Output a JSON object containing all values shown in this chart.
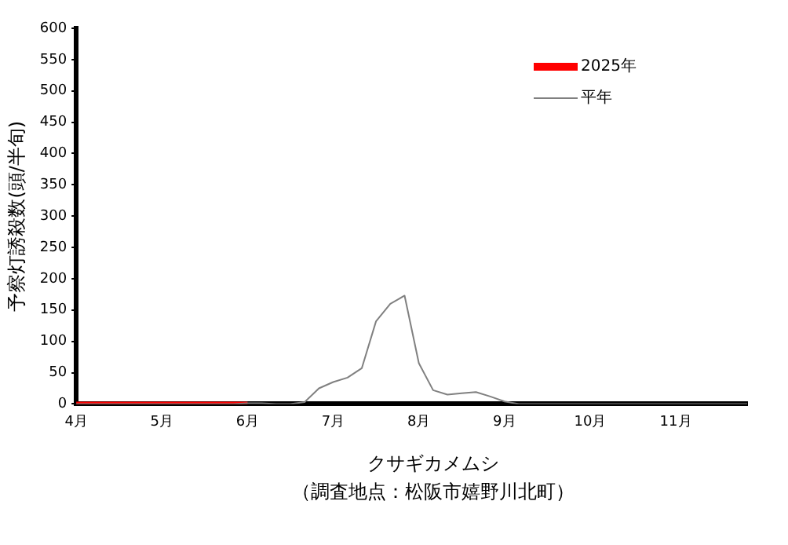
{
  "chart_data": {
    "type": "line",
    "xlabel": "クサギカメムシ",
    "ylabel": "予察灯誘殺数(頭/半旬)",
    "annotations": [
      "（調査地点：松阪市嬉野川北町）"
    ],
    "categories": [
      "4月",
      null,
      null,
      null,
      null,
      null,
      "5月",
      null,
      null,
      null,
      null,
      null,
      "6月",
      null,
      null,
      null,
      null,
      null,
      "7月",
      null,
      null,
      null,
      null,
      null,
      "8月",
      null,
      null,
      null,
      null,
      null,
      "9月",
      null,
      null,
      null,
      null,
      null,
      "10月",
      null,
      null,
      null,
      null,
      null,
      "11月",
      null,
      null,
      null,
      null,
      null
    ],
    "series": [
      {
        "name": "2025年",
        "color": "#ff0000",
        "values": [
          0,
          0,
          0,
          0,
          0,
          0,
          0,
          0,
          0,
          0,
          0,
          0,
          0,
          null,
          null,
          null,
          null,
          null,
          null,
          null,
          null,
          null,
          null,
          null,
          null,
          null,
          null,
          null,
          null,
          null,
          null,
          null,
          null,
          null,
          null,
          null,
          null,
          null,
          null,
          null,
          null,
          null,
          null,
          null,
          null,
          null,
          null,
          null
        ]
      },
      {
        "name": "平年",
        "color": "#808080",
        "values": [
          0,
          0,
          0,
          0,
          0,
          0,
          0,
          0,
          0,
          0,
          0,
          0,
          1,
          1,
          0,
          0,
          3,
          25,
          35,
          42,
          57,
          132,
          160,
          173,
          65,
          22,
          15,
          17,
          19,
          12,
          4,
          0,
          0,
          0,
          0,
          0,
          0,
          0,
          0,
          0,
          0,
          0,
          0,
          0,
          0,
          0,
          0,
          0
        ]
      }
    ],
    "ylim": [
      0,
      600
    ],
    "yticks": [
      0,
      50,
      100,
      150,
      200,
      250,
      300,
      350,
      400,
      450,
      500,
      550,
      600
    ],
    "grid": false,
    "legend": "top right",
    "marker": "none",
    "line_style": "solid"
  }
}
